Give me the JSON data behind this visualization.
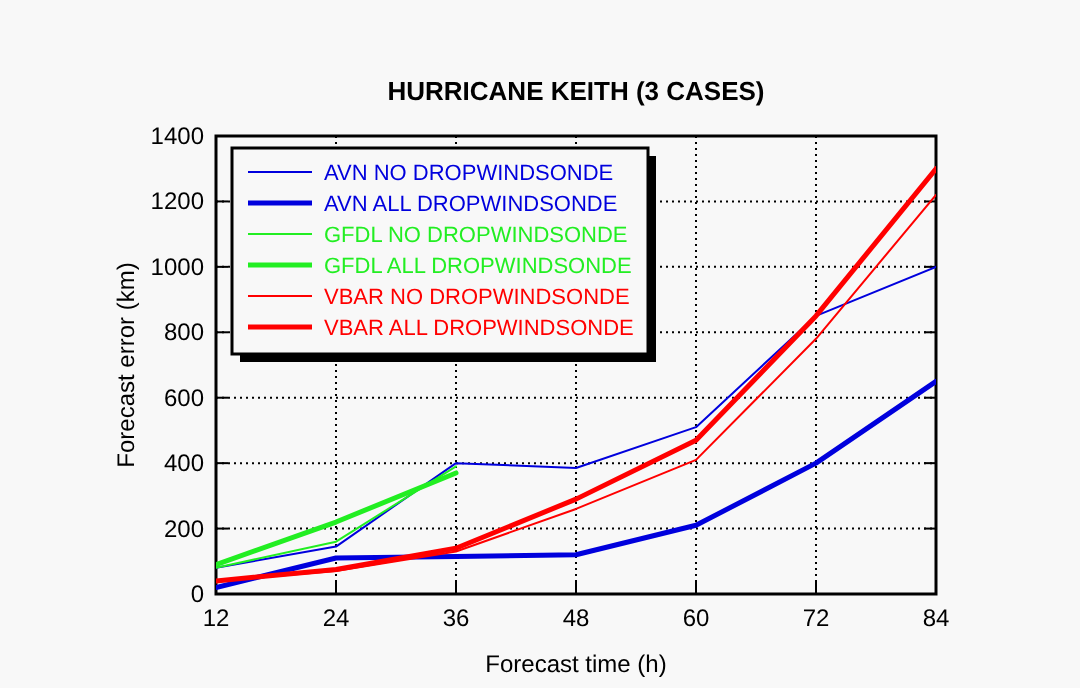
{
  "chart_data": {
    "type": "line",
    "title": "HURRICANE KEITH (3 CASES)",
    "xlabel": "Forecast time (h)",
    "ylabel": "Forecast error (km)",
    "x": [
      12,
      24,
      36,
      48,
      60,
      72,
      84
    ],
    "xlim": [
      12,
      84
    ],
    "xticks": [
      12,
      24,
      36,
      48,
      60,
      72,
      84
    ],
    "ylim": [
      0,
      1400
    ],
    "yticks": [
      0,
      200,
      400,
      600,
      800,
      1000,
      1200,
      1400
    ],
    "grid": true,
    "legend": "top left",
    "marker": "none",
    "series": [
      {
        "name": "AVN NO DROPWINDSONDE",
        "color": "#0000dd",
        "values": [
          80,
          145,
          400,
          385,
          510,
          850,
          1000
        ]
      },
      {
        "name": "AVN ALL DROPWINDSONDE",
        "color": "#0000dd",
        "values": [
          20,
          110,
          115,
          120,
          210,
          400,
          650
        ]
      },
      {
        "name": "GFDL NO DROPWINDSONDE",
        "color": "#22ee22",
        "values": [
          80,
          160,
          390,
          null,
          null,
          null,
          null
        ]
      },
      {
        "name": "GFDL ALL DROPWINDSONDE",
        "color": "#22ee22",
        "values": [
          90,
          220,
          370,
          null,
          null,
          null,
          null
        ]
      },
      {
        "name": "VBAR NO DROPWINDSONDE",
        "color": "#ff0000",
        "values": [
          40,
          70,
          130,
          260,
          410,
          780,
          1220
        ]
      },
      {
        "name": "VBAR ALL DROPWINDSONDE",
        "color": "#ff0000",
        "values": [
          40,
          75,
          140,
          290,
          470,
          850,
          1300
        ]
      }
    ]
  }
}
